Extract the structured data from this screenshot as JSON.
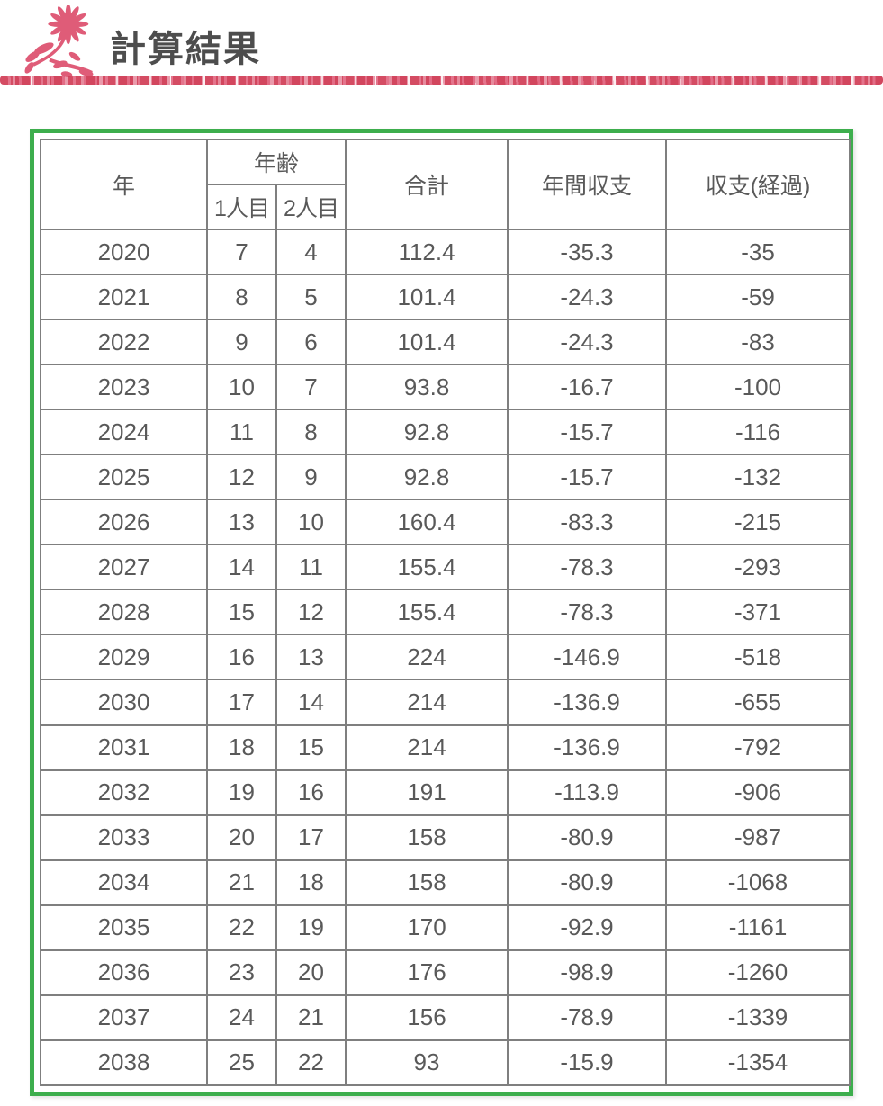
{
  "header": {
    "title": "計算結果"
  },
  "colors": {
    "accent_rose": "#df5c78",
    "frame_green": "#3dae4d",
    "table_border_gray": "#7f7f7f",
    "text_gray": "#595959",
    "negative_red": "#ff0000"
  },
  "table": {
    "headers": {
      "year": "年",
      "age_group": "年齢",
      "age_first": "1人目",
      "age_second": "2人目",
      "total": "合計",
      "annual_balance": "年間収支",
      "cumulative_balance": "収支(経過)"
    },
    "rows": [
      [
        "2020",
        "7",
        "4",
        "112.4",
        "-35.3",
        "-35"
      ],
      [
        "2021",
        "8",
        "5",
        "101.4",
        "-24.3",
        "-59"
      ],
      [
        "2022",
        "9",
        "6",
        "101.4",
        "-24.3",
        "-83"
      ],
      [
        "2023",
        "10",
        "7",
        "93.8",
        "-16.7",
        "-100"
      ],
      [
        "2024",
        "11",
        "8",
        "92.8",
        "-15.7",
        "-116"
      ],
      [
        "2025",
        "12",
        "9",
        "92.8",
        "-15.7",
        "-132"
      ],
      [
        "2026",
        "13",
        "10",
        "160.4",
        "-83.3",
        "-215"
      ],
      [
        "2027",
        "14",
        "11",
        "155.4",
        "-78.3",
        "-293"
      ],
      [
        "2028",
        "15",
        "12",
        "155.4",
        "-78.3",
        "-371"
      ],
      [
        "2029",
        "16",
        "13",
        "224",
        "-146.9",
        "-518"
      ],
      [
        "2030",
        "17",
        "14",
        "214",
        "-136.9",
        "-655"
      ],
      [
        "2031",
        "18",
        "15",
        "214",
        "-136.9",
        "-792"
      ],
      [
        "2032",
        "19",
        "16",
        "191",
        "-113.9",
        "-906"
      ],
      [
        "2033",
        "20",
        "17",
        "158",
        "-80.9",
        "-987"
      ],
      [
        "2034",
        "21",
        "18",
        "158",
        "-80.9",
        "-1068"
      ],
      [
        "2035",
        "22",
        "19",
        "170",
        "-92.9",
        "-1161"
      ],
      [
        "2036",
        "23",
        "20",
        "176",
        "-98.9",
        "-1260"
      ],
      [
        "2037",
        "24",
        "21",
        "156",
        "-78.9",
        "-1339"
      ],
      [
        "2038",
        "25",
        "22",
        "93",
        "-15.9",
        "-1354"
      ]
    ]
  }
}
